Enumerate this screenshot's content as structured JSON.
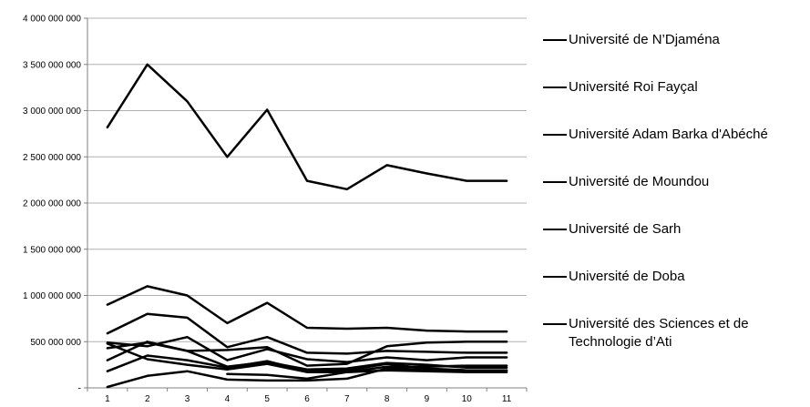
{
  "chart_data": {
    "type": "line",
    "x": [
      1,
      2,
      3,
      4,
      5,
      6,
      7,
      8,
      9,
      10,
      11
    ],
    "ylim": [
      0,
      4000000000
    ],
    "y_ticks": [
      {
        "value": 0,
        "label": "-"
      },
      {
        "value": 500000000,
        "label": "500 000 000"
      },
      {
        "value": 1000000000,
        "label": "1 000 000 000"
      },
      {
        "value": 1500000000,
        "label": "1 500 000 000"
      },
      {
        "value": 2000000000,
        "label": "2 000 000 000"
      },
      {
        "value": 2500000000,
        "label": "2 500 000 000"
      },
      {
        "value": 3000000000,
        "label": "3 000 000 000"
      },
      {
        "value": 3500000000,
        "label": "3 500 000 000"
      },
      {
        "value": 4000000000,
        "label": "4 000 000 000"
      }
    ],
    "x_tick_labels": [
      "1",
      "2",
      "3",
      "4",
      "5",
      "6",
      "7",
      "8",
      "9",
      "10",
      "11"
    ],
    "grid": "horizontal",
    "legend_position": "right",
    "line_color": "#000000",
    "series": [
      {
        "name": "Université de N’Djaména",
        "values": [
          2820000000,
          3500000000,
          3100000000,
          2500000000,
          3010000000,
          2240000000,
          2150000000,
          2410000000,
          2320000000,
          2240000000,
          2240000000
        ]
      },
      {
        "name": "Université Roi Fayçal",
        "values": [
          900000000,
          1100000000,
          1000000000,
          700000000,
          920000000,
          650000000,
          640000000,
          650000000,
          620000000,
          610000000,
          610000000
        ]
      },
      {
        "name": "Université Adam Barka d'Abéché",
        "values": [
          590000000,
          800000000,
          760000000,
          440000000,
          550000000,
          380000000,
          370000000,
          400000000,
          390000000,
          380000000,
          380000000
        ]
      },
      {
        "name": "Université de Moundou",
        "values": [
          490000000,
          450000000,
          550000000,
          300000000,
          420000000,
          310000000,
          280000000,
          330000000,
          300000000,
          330000000,
          330000000
        ]
      },
      {
        "name": "Université de  Sarh",
        "values": [
          430000000,
          490000000,
          400000000,
          410000000,
          440000000,
          240000000,
          260000000,
          450000000,
          490000000,
          500000000,
          500000000
        ]
      },
      {
        "name": "Université de Doba",
        "values": [
          300000000,
          500000000,
          400000000,
          230000000,
          280000000,
          200000000,
          210000000,
          270000000,
          250000000,
          220000000,
          220000000
        ]
      },
      {
        "name": "Université des Sciences et de Technologie d’Ati",
        "values": [
          180000000,
          350000000,
          300000000,
          220000000,
          290000000,
          180000000,
          190000000,
          260000000,
          210000000,
          190000000,
          190000000
        ]
      },
      {
        "name": "",
        "values": [
          10000000,
          130000000,
          180000000,
          90000000,
          80000000,
          80000000,
          100000000,
          210000000,
          200000000,
          190000000,
          190000000
        ]
      },
      {
        "name": "",
        "values": [
          480000000,
          310000000,
          250000000,
          200000000,
          260000000,
          170000000,
          170000000,
          230000000,
          230000000,
          240000000,
          240000000
        ]
      },
      {
        "name": "",
        "values": [
          null,
          null,
          null,
          150000000,
          140000000,
          100000000,
          170000000,
          190000000,
          180000000,
          170000000,
          170000000
        ]
      }
    ]
  }
}
